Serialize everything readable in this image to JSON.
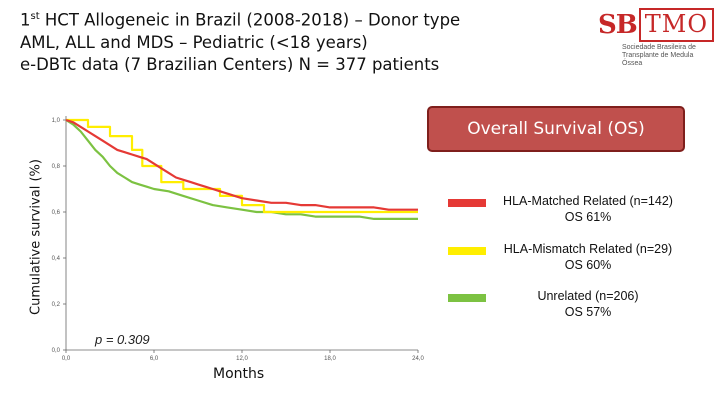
{
  "header": {
    "line1_pre": "1",
    "line1_sup": "st",
    "line1_post": " HCT Allogeneic in Brazil (2008-2018) – Donor type",
    "line2": "AML, ALL and MDS – Pediatric (<18 years)",
    "line3": "e-DBTc data (7 Brazilian Centers) N = 377 patients"
  },
  "logo": {
    "sb": "SB",
    "tmo": "TMO",
    "sub1": "Sociedade Brasileira de",
    "sub2": "Transplante de Medula Óssea"
  },
  "banner": {
    "text": "Overall Survival (OS)"
  },
  "chart_data": {
    "type": "line",
    "title": "Overall Survival (OS)",
    "xlabel": "Months",
    "ylabel": "Cumulative survival (%)",
    "xlim": [
      0,
      24
    ],
    "ylim": [
      0,
      1
    ],
    "xticks": [
      "0,0",
      "6,0",
      "12,0",
      "18,0",
      "24,0"
    ],
    "yticks": [
      "0,0",
      "0,2",
      "0,4",
      "0,6",
      "0,8",
      "1,0"
    ],
    "xtick_values": [
      0,
      6,
      12,
      18,
      24
    ],
    "ytick_values": [
      0,
      0.2,
      0.4,
      0.6,
      0.8,
      1.0
    ],
    "annotation": "p = 0.309",
    "series": [
      {
        "name": "HLA-Matched Related (n=142)",
        "os": "OS 61%",
        "color": "#e53935",
        "x": [
          0,
          0.5,
          1,
          1.5,
          2,
          2.5,
          3,
          3.5,
          4,
          4.5,
          5,
          5.5,
          6,
          6.5,
          7,
          7.5,
          8,
          8.5,
          9,
          9.5,
          10,
          10.5,
          11,
          11.5,
          12,
          13,
          14,
          15,
          16,
          17,
          18,
          19,
          20,
          21,
          22,
          23,
          24
        ],
        "y": [
          1.0,
          0.99,
          0.97,
          0.95,
          0.93,
          0.91,
          0.89,
          0.87,
          0.86,
          0.85,
          0.84,
          0.83,
          0.81,
          0.79,
          0.77,
          0.75,
          0.74,
          0.73,
          0.72,
          0.71,
          0.7,
          0.69,
          0.68,
          0.67,
          0.66,
          0.65,
          0.64,
          0.64,
          0.63,
          0.63,
          0.62,
          0.62,
          0.62,
          0.62,
          0.61,
          0.61,
          0.61
        ]
      },
      {
        "name": "HLA-Mismatch Related (n=29)",
        "os": "OS 60%",
        "color": "#ffee00",
        "x": [
          0,
          1.5,
          1.5,
          3,
          3,
          4.5,
          4.5,
          5.2,
          5.2,
          6.5,
          6.5,
          8,
          8,
          10.5,
          10.5,
          12,
          12,
          13.5,
          13.5,
          24
        ],
        "y": [
          1.0,
          1.0,
          0.97,
          0.97,
          0.93,
          0.93,
          0.87,
          0.87,
          0.8,
          0.8,
          0.73,
          0.73,
          0.7,
          0.7,
          0.67,
          0.67,
          0.63,
          0.63,
          0.6,
          0.6
        ]
      },
      {
        "name": "Unrelated (n=206)",
        "os": "OS 57%",
        "color": "#7cc242",
        "x": [
          0,
          0.5,
          1,
          1.5,
          2,
          2.5,
          3,
          3.5,
          4,
          4.5,
          5,
          5.5,
          6,
          7,
          8,
          9,
          10,
          11,
          12,
          13,
          14,
          15,
          16,
          17,
          18,
          19,
          20,
          21,
          22,
          23,
          24
        ],
        "y": [
          1.0,
          0.98,
          0.95,
          0.91,
          0.87,
          0.84,
          0.8,
          0.77,
          0.75,
          0.73,
          0.72,
          0.71,
          0.7,
          0.69,
          0.67,
          0.65,
          0.63,
          0.62,
          0.61,
          0.6,
          0.6,
          0.59,
          0.59,
          0.58,
          0.58,
          0.58,
          0.58,
          0.57,
          0.57,
          0.57,
          0.57
        ]
      }
    ]
  }
}
